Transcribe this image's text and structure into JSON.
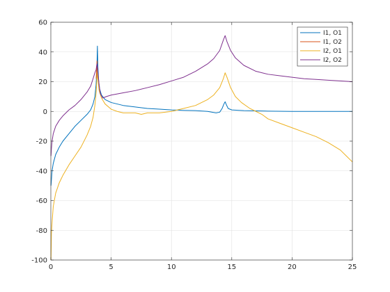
{
  "chart_data": {
    "type": "line",
    "title": "",
    "xlabel": "",
    "ylabel": "",
    "xlim": [
      0,
      25
    ],
    "ylim": [
      -100,
      60
    ],
    "xticks": [
      0,
      5,
      10,
      15,
      20,
      25
    ],
    "yticks": [
      -100,
      -80,
      -60,
      -40,
      -20,
      0,
      20,
      40,
      60
    ],
    "grid": true,
    "legend_position": "top-right",
    "series": [
      {
        "name": "I1, O1",
        "color": "#0072BD",
        "points": [
          [
            0.01,
            -50
          ],
          [
            0.05,
            -46
          ],
          [
            0.1,
            -40
          ],
          [
            0.2,
            -35
          ],
          [
            0.4,
            -29
          ],
          [
            0.7,
            -24
          ],
          [
            1.0,
            -20
          ],
          [
            1.5,
            -15
          ],
          [
            2.0,
            -10
          ],
          [
            2.5,
            -6
          ],
          [
            3.0,
            -2
          ],
          [
            3.3,
            1
          ],
          [
            3.5,
            5
          ],
          [
            3.65,
            10
          ],
          [
            3.75,
            18
          ],
          [
            3.82,
            30
          ],
          [
            3.86,
            44
          ],
          [
            3.9,
            30
          ],
          [
            3.97,
            20
          ],
          [
            4.05,
            15
          ],
          [
            4.2,
            11
          ],
          [
            4.5,
            8
          ],
          [
            5.0,
            6
          ],
          [
            6.0,
            4
          ],
          [
            7.0,
            3
          ],
          [
            8.0,
            2
          ],
          [
            9.0,
            1.5
          ],
          [
            10.0,
            1
          ],
          [
            11.0,
            0.7
          ],
          [
            12.0,
            0.5
          ],
          [
            13.0,
            0
          ],
          [
            13.7,
            -1
          ],
          [
            14.0,
            -0.5
          ],
          [
            14.2,
            2
          ],
          [
            14.35,
            5
          ],
          [
            14.45,
            6.5
          ],
          [
            14.55,
            4.5
          ],
          [
            14.7,
            2
          ],
          [
            15.0,
            1
          ],
          [
            16.0,
            0.5
          ],
          [
            18.0,
            0.2
          ],
          [
            20.0,
            0
          ],
          [
            22.0,
            0
          ],
          [
            25.0,
            0
          ]
        ]
      },
      {
        "name": "I1, O2",
        "color": "#D95319",
        "points": [
          [
            3.76,
            22
          ],
          [
            3.8,
            30
          ],
          [
            3.83,
            34
          ],
          [
            3.86,
            25
          ],
          [
            3.9,
            22
          ]
        ]
      },
      {
        "name": "I2, O1",
        "color": "#EDB120",
        "points": [
          [
            0.01,
            -100
          ],
          [
            0.05,
            -82
          ],
          [
            0.1,
            -75
          ],
          [
            0.2,
            -64
          ],
          [
            0.4,
            -55
          ],
          [
            0.7,
            -48
          ],
          [
            1.0,
            -43
          ],
          [
            1.5,
            -36
          ],
          [
            2.0,
            -30
          ],
          [
            2.5,
            -24
          ],
          [
            3.0,
            -16
          ],
          [
            3.3,
            -10
          ],
          [
            3.5,
            -4
          ],
          [
            3.65,
            4
          ],
          [
            3.75,
            12
          ],
          [
            3.82,
            22
          ],
          [
            3.86,
            28
          ],
          [
            3.9,
            22
          ],
          [
            4.0,
            14
          ],
          [
            4.2,
            9
          ],
          [
            4.5,
            5
          ],
          [
            5.0,
            1.5
          ],
          [
            5.5,
            0
          ],
          [
            6.0,
            -1
          ],
          [
            7.0,
            -1
          ],
          [
            7.5,
            -2
          ],
          [
            8.0,
            -1
          ],
          [
            9.0,
            -1
          ],
          [
            10.0,
            0
          ],
          [
            11.0,
            2
          ],
          [
            12.0,
            4
          ],
          [
            13.0,
            8
          ],
          [
            13.5,
            11
          ],
          [
            14.0,
            16
          ],
          [
            14.3,
            22
          ],
          [
            14.45,
            26
          ],
          [
            14.6,
            23
          ],
          [
            14.9,
            16
          ],
          [
            15.3,
            10
          ],
          [
            15.8,
            6
          ],
          [
            16.5,
            2
          ],
          [
            17.0,
            0
          ],
          [
            17.5,
            -2
          ],
          [
            18.0,
            -5
          ],
          [
            19.0,
            -8
          ],
          [
            20.0,
            -11
          ],
          [
            21.0,
            -14
          ],
          [
            22.0,
            -17
          ],
          [
            23.0,
            -21
          ],
          [
            24.0,
            -26
          ],
          [
            24.5,
            -30
          ],
          [
            25.0,
            -34
          ]
        ]
      },
      {
        "name": "I2, O2",
        "color": "#7E2F8E",
        "points": [
          [
            0.01,
            -30
          ],
          [
            0.05,
            -25
          ],
          [
            0.1,
            -20
          ],
          [
            0.2,
            -15
          ],
          [
            0.4,
            -10
          ],
          [
            0.7,
            -6
          ],
          [
            1.0,
            -3
          ],
          [
            1.5,
            1
          ],
          [
            2.0,
            4
          ],
          [
            2.5,
            8
          ],
          [
            3.0,
            13
          ],
          [
            3.3,
            17
          ],
          [
            3.5,
            22
          ],
          [
            3.65,
            26
          ],
          [
            3.75,
            28
          ],
          [
            3.82,
            32
          ],
          [
            3.86,
            30
          ],
          [
            3.9,
            26
          ],
          [
            4.0,
            18
          ],
          [
            4.1,
            12
          ],
          [
            4.3,
            9
          ],
          [
            4.6,
            10
          ],
          [
            5.0,
            11
          ],
          [
            6.0,
            12.5
          ],
          [
            7.0,
            14
          ],
          [
            8.0,
            16
          ],
          [
            9.0,
            18
          ],
          [
            10.0,
            20.5
          ],
          [
            11.0,
            23
          ],
          [
            12.0,
            27
          ],
          [
            13.0,
            32
          ],
          [
            13.5,
            35.5
          ],
          [
            14.0,
            41
          ],
          [
            14.3,
            48
          ],
          [
            14.45,
            51
          ],
          [
            14.6,
            47
          ],
          [
            14.9,
            41
          ],
          [
            15.3,
            36
          ],
          [
            16.0,
            31
          ],
          [
            17.0,
            27
          ],
          [
            18.0,
            25
          ],
          [
            19.0,
            24
          ],
          [
            20.0,
            23
          ],
          [
            21.0,
            22
          ],
          [
            22.0,
            21.5
          ],
          [
            23.0,
            21
          ],
          [
            24.0,
            20.5
          ],
          [
            25.0,
            20
          ]
        ]
      }
    ]
  }
}
